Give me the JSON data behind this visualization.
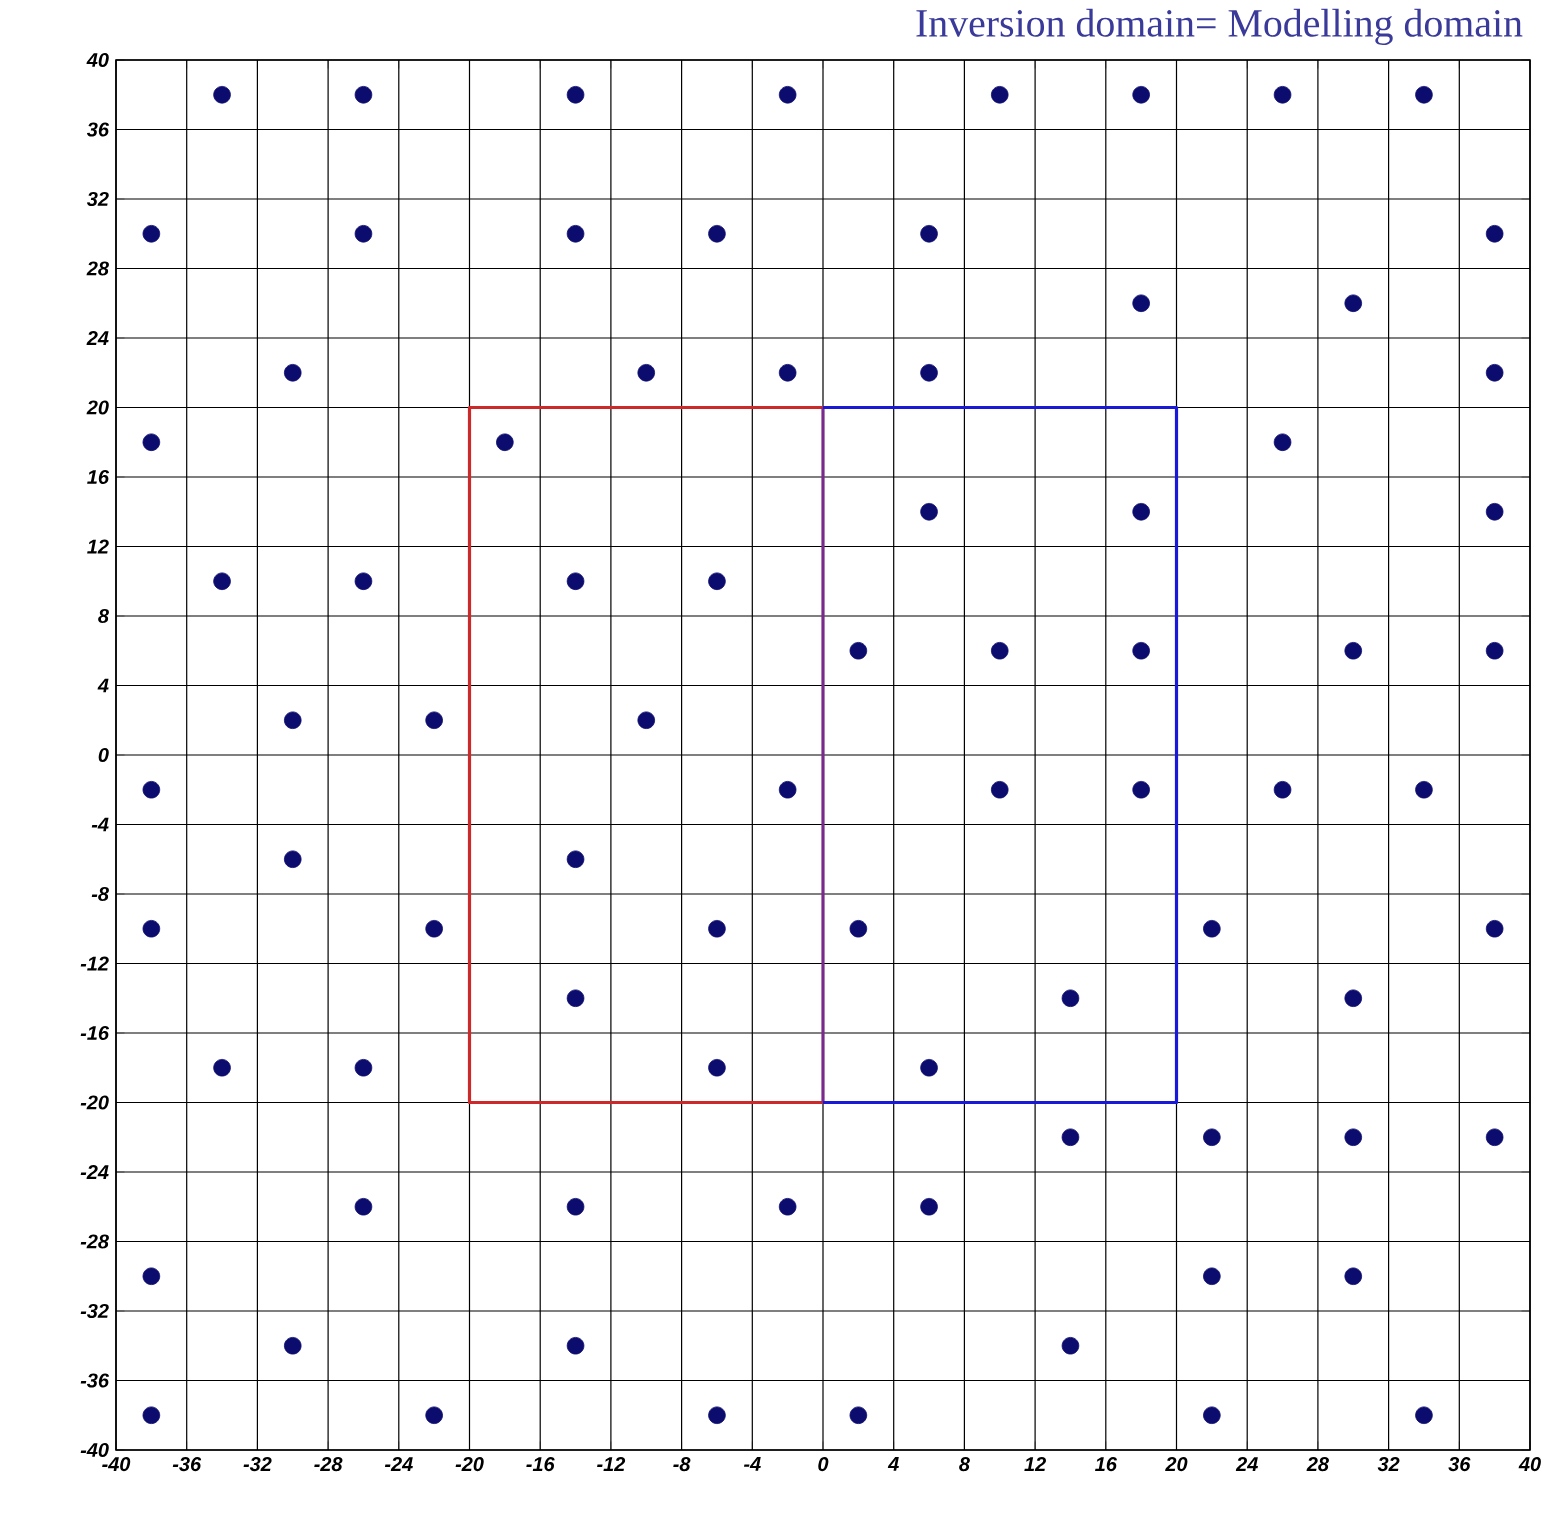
{
  "chart_data": {
    "type": "scatter",
    "title": "Inversion domain= Modelling domain",
    "marker": "circle",
    "grid": true,
    "xlim": [
      -40,
      40
    ],
    "ylim": [
      -40,
      40
    ],
    "xticks": [
      -40,
      -36,
      -32,
      -28,
      -24,
      -20,
      -16,
      -12,
      -8,
      -4,
      0,
      4,
      8,
      12,
      16,
      20,
      24,
      28,
      32,
      36,
      40
    ],
    "yticks": [
      -40,
      -36,
      -32,
      -28,
      -24,
      -20,
      -16,
      -12,
      -8,
      -4,
      0,
      4,
      8,
      12,
      16,
      20,
      24,
      28,
      32,
      36,
      40
    ],
    "series": [
      {
        "color": "#0c0c6e",
        "x": [
          -34,
          -26,
          -14,
          -2,
          10,
          18,
          26,
          34,
          -38,
          -26,
          -14,
          -6,
          6,
          38,
          18,
          30,
          -30,
          -10,
          -2,
          6,
          38,
          -38,
          -18,
          26,
          6,
          18,
          38,
          -34,
          -26,
          -14,
          -6,
          2,
          10,
          18,
          30,
          38,
          -30,
          -22,
          -10,
          -38,
          -2,
          10,
          18,
          26,
          34,
          -30,
          -14,
          -38,
          -22,
          -6,
          2,
          22,
          38,
          -14,
          14,
          30,
          -34,
          -26,
          -6,
          6,
          14,
          22,
          30,
          38,
          -26,
          -14,
          -2,
          6,
          -38,
          22,
          30,
          -30,
          -14,
          14,
          -38,
          -22,
          -6,
          2,
          22,
          34
        ],
        "values": [
          38,
          38,
          38,
          38,
          38,
          38,
          38,
          38,
          30,
          30,
          30,
          30,
          30,
          30,
          26,
          26,
          22,
          22,
          22,
          22,
          22,
          18,
          18,
          18,
          14,
          14,
          14,
          10,
          10,
          10,
          10,
          6,
          6,
          6,
          6,
          6,
          2,
          2,
          2,
          -2,
          -2,
          -2,
          -2,
          -2,
          -2,
          -6,
          -6,
          -10,
          -10,
          -10,
          -10,
          -10,
          -10,
          -14,
          -14,
          -14,
          -18,
          -18,
          -18,
          -18,
          -22,
          -22,
          -22,
          -22,
          -26,
          -26,
          -26,
          -26,
          -30,
          -30,
          -30,
          -34,
          -34,
          -34,
          -38,
          -38,
          -38,
          -38,
          -38,
          -38
        ]
      },
      {
        "type": "line",
        "marker": "none",
        "color": "#cc2a2a",
        "x": [
          0,
          -20,
          -20,
          0
        ],
        "values": [
          20,
          20,
          -20,
          -20
        ]
      },
      {
        "type": "line",
        "marker": "none",
        "color": "#7a2a8a",
        "x": [
          0,
          0
        ],
        "values": [
          -20,
          20
        ]
      },
      {
        "type": "line",
        "marker": "none",
        "color": "#1a1ad6",
        "x": [
          0,
          20,
          20,
          0
        ],
        "values": [
          20,
          20,
          -20,
          -20
        ]
      }
    ]
  }
}
